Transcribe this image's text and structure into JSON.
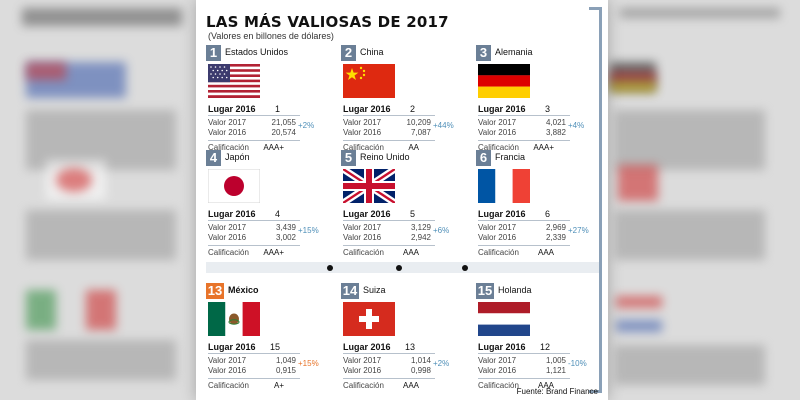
{
  "title": "LAS MÁS VALIOSAS DE 2017",
  "subtitle": "(Valores en billones de dólares)",
  "labels": {
    "lugar": "Lugar 2016",
    "valor2017": "Valor 2017",
    "valor2016": "Valor 2016",
    "calif": "Calificación"
  },
  "countries": [
    {
      "rank": "1",
      "name": "Estados Unidos",
      "lugar": "1",
      "v2017": "21,055",
      "v2016": "20,574",
      "pct": "+2%",
      "calif": "AAA+"
    },
    {
      "rank": "2",
      "name": "China",
      "lugar": "2",
      "v2017": "10,209",
      "v2016": "7,087",
      "pct": "+44%",
      "calif": "AA"
    },
    {
      "rank": "3",
      "name": "Alemania",
      "lugar": "3",
      "v2017": "4,021",
      "v2016": "3,882",
      "pct": "+4%",
      "calif": "AAA+"
    },
    {
      "rank": "4",
      "name": "Japón",
      "lugar": "4",
      "v2017": "3,439",
      "v2016": "3,002",
      "pct": "+15%",
      "calif": "AAA+"
    },
    {
      "rank": "5",
      "name": "Reino Unido",
      "lugar": "5",
      "v2017": "3,129",
      "v2016": "2,942",
      "pct": "+6%",
      "calif": "AAA"
    },
    {
      "rank": "6",
      "name": "Francia",
      "lugar": "6",
      "v2017": "2,969",
      "v2016": "2,339",
      "pct": "+27%",
      "calif": "AAA"
    },
    {
      "rank": "13",
      "name": "México",
      "lugar": "15",
      "v2017": "1,049",
      "v2016": "0,915",
      "pct": "+15%",
      "calif": "A+"
    },
    {
      "rank": "14",
      "name": "Suiza",
      "lugar": "13",
      "v2017": "1,014",
      "v2016": "0,998",
      "pct": "+2%",
      "calif": "AAA"
    },
    {
      "rank": "15",
      "name": "Holanda",
      "lugar": "12",
      "v2017": "1,005",
      "v2016": "1,121",
      "pct": "-10%",
      "calif": "AAA"
    }
  ],
  "source": "Fuente: Brand Finance",
  "colors": {
    "badge_blue": "#6b7f96",
    "badge_orange": "#e8742a",
    "pct_blue": "#4f8fb8",
    "pct_orange": "#e8742a"
  }
}
